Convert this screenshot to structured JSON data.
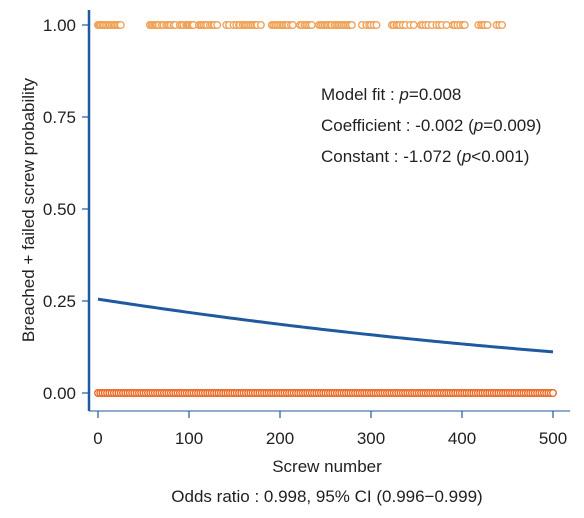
{
  "chart_data": {
    "type": "scatter",
    "xlabel": "Screw number",
    "ylabel": "Breached + failed screw probability",
    "xlim": [
      0,
      500
    ],
    "ylim": [
      0,
      1
    ],
    "x_ticks": [
      "0",
      "100",
      "200",
      "300",
      "400",
      "500"
    ],
    "y_ticks": [
      "0.00",
      "0.25",
      "0.50",
      "0.75",
      "1.00"
    ],
    "grid": false,
    "annotations": [
      {
        "label": "Model fit : ",
        "italic": "p",
        "rest": "=0.008"
      },
      {
        "label": "Coefficient : -0.002 (",
        "italic": "p",
        "rest": "=0.009)"
      },
      {
        "label": "Constant : -1.072 (",
        "italic": "p",
        "rest": "<0.001)"
      }
    ],
    "footnote": "Odds ratio : 0.998, 95% CI (0.996−0.999)",
    "curve": {
      "model": "logistic",
      "constant": -1.072,
      "coefficient": -0.002,
      "x_range": [
        0,
        500
      ],
      "color": "#1f5aa0"
    },
    "series": [
      {
        "y": 1,
        "color": "#f0a35a",
        "x": [
          0,
          1,
          2,
          3,
          5,
          6,
          8,
          10,
          12,
          13,
          15,
          17,
          18,
          19,
          21,
          22,
          24,
          25,
          57,
          59,
          60,
          62,
          63,
          64,
          65,
          67,
          70,
          72,
          75,
          77,
          78,
          80,
          83,
          85,
          90,
          92,
          94,
          97,
          98,
          99,
          100,
          101,
          103,
          104,
          105,
          111,
          113,
          114,
          116,
          118,
          120,
          123,
          125,
          127,
          128,
          131,
          141,
          144,
          149,
          152,
          155,
          156,
          159,
          161,
          162,
          164,
          166,
          168,
          170,
          172,
          174,
          175,
          179,
          191,
          193,
          195,
          197,
          199,
          201,
          203,
          204,
          206,
          208,
          209,
          212,
          214,
          222,
          224,
          227,
          229,
          231,
          233,
          235,
          243,
          245,
          247,
          249,
          251,
          252,
          254,
          256,
          257,
          260,
          262,
          264,
          265,
          267,
          268,
          270,
          272,
          274,
          276,
          277,
          279,
          290,
          295,
          298,
          300,
          303,
          306,
          323,
          325,
          328,
          330,
          332,
          335,
          338,
          343,
          347,
          355,
          357,
          360,
          363,
          367,
          372,
          375,
          378,
          383,
          390,
          392,
          395,
          398,
          401,
          403,
          418,
          421,
          423,
          425,
          428,
          438,
          441,
          444
        ]
      },
      {
        "y": 0,
        "color": "#ec6a25",
        "x_step": 2.5,
        "x_range": [
          0,
          500
        ]
      }
    ]
  }
}
